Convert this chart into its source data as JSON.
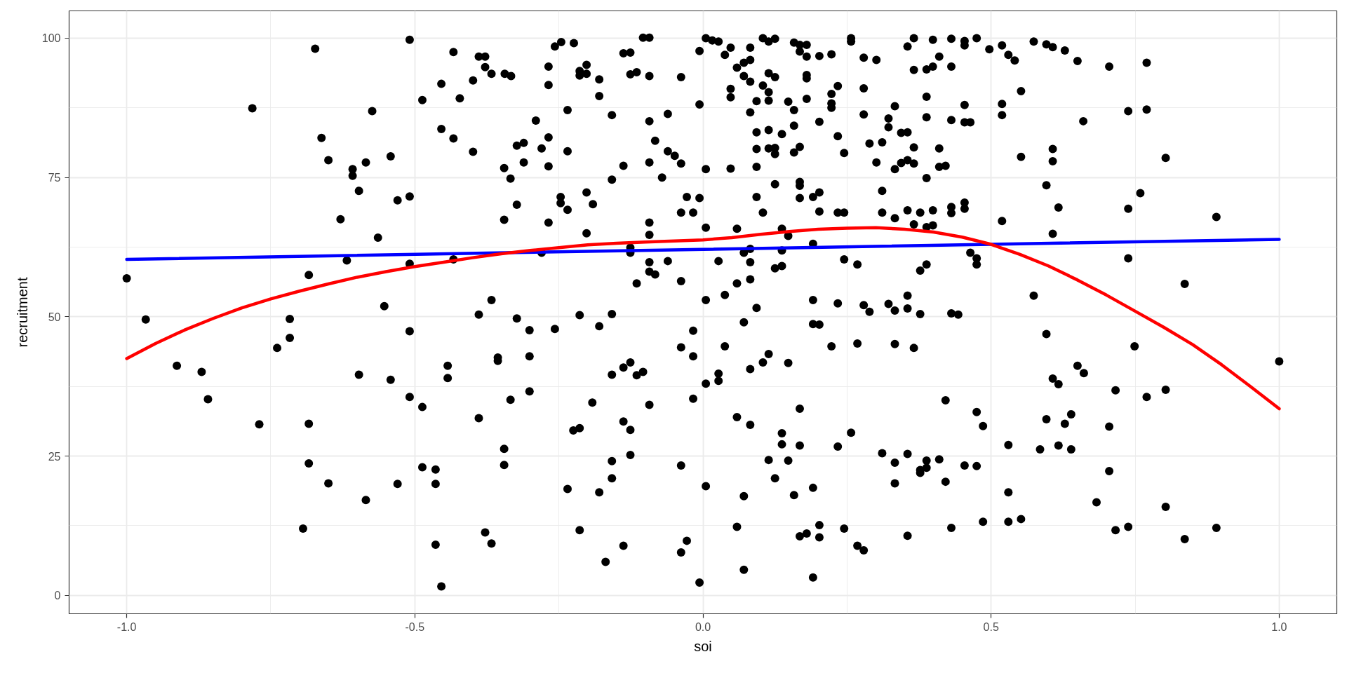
{
  "chart_data": {
    "type": "scatter",
    "xlabel": "soi",
    "ylabel": "recruitment",
    "xlim": [
      -1.1,
      1.1
    ],
    "ylim": [
      -3.3,
      104.9
    ],
    "xticks": [
      {
        "value": -1,
        "label": "-1.0"
      },
      {
        "value": -0.5,
        "label": "-0.5"
      },
      {
        "value": 0,
        "label": "0.0"
      },
      {
        "value": 0.5,
        "label": "0.5"
      },
      {
        "value": 1,
        "label": "1.0"
      }
    ],
    "yticks": [
      0,
      25,
      50,
      75,
      100
    ],
    "grid": true,
    "series": [
      {
        "color": "#000000",
        "marker": "circle",
        "x": [
          -0.782,
          -0.673,
          -0.662,
          -0.65,
          -0.608,
          -0.608,
          -0.585,
          -0.597,
          -0.574,
          -0.542,
          -0.629,
          -0.564,
          -0.53,
          -0.509,
          -0.509,
          -0.487,
          -0.454,
          -0.433,
          -0.454,
          -0.433,
          -0.422,
          -0.399,
          -0.389,
          -0.378,
          -0.378,
          -0.367,
          -0.399,
          -0.618,
          -0.684,
          -0.509,
          -0.433,
          -1.0,
          -0.553,
          -0.389,
          -0.367,
          -0.967,
          -0.913,
          -0.87,
          -0.859,
          -0.77,
          -0.717,
          -0.717,
          -0.739,
          -0.684,
          -0.684,
          -0.65,
          -0.694,
          -0.597,
          -0.542,
          -0.585,
          -0.53,
          -0.509,
          -0.509,
          -0.487,
          -0.487,
          -0.464,
          -0.464,
          -0.464,
          -0.454,
          -0.443,
          -0.443,
          -0.389,
          -0.378,
          -0.367,
          -0.344,
          -0.333,
          -0.268,
          -0.268,
          -0.257,
          -0.246,
          -0.224,
          -0.214,
          -0.214,
          -0.202,
          -0.202,
          -0.18,
          -0.18,
          -0.138,
          -0.126,
          -0.126,
          -0.115,
          -0.104,
          -0.093,
          -0.093,
          -0.038,
          -0.006,
          -0.006,
          0.005,
          0.016,
          0.027,
          0.038,
          0.048,
          0.059,
          0.071,
          0.071,
          0.082,
          0.082,
          0.082,
          0.048,
          0.048,
          0.104,
          0.114,
          0.125,
          0.104,
          0.114,
          0.125,
          0.114,
          0.114,
          0.093,
          0.148,
          0.158,
          0.168,
          0.168,
          0.18,
          0.18,
          0.18,
          0.18,
          0.18,
          0.158,
          0.202,
          0.223,
          0.223,
          0.234,
          0.223,
          0.223,
          0.257,
          0.257,
          0.279,
          0.301,
          0.279,
          0.333,
          0.279,
          0.355,
          0.366,
          0.366,
          -0.29,
          -0.235,
          -0.158,
          -0.093,
          -0.061,
          -0.323,
          -0.311,
          -0.28,
          -0.268,
          -0.235,
          -0.311,
          -0.345,
          -0.268,
          -0.334,
          -0.158,
          -0.138,
          -0.093,
          -0.083,
          -0.061,
          -0.049,
          -0.038,
          -0.071,
          0.005,
          0.048,
          0.082,
          0.093,
          0.114,
          0.137,
          0.158,
          0.093,
          0.114,
          0.125,
          0.125,
          0.158,
          0.168,
          0.093,
          0.202,
          0.234,
          0.245,
          0.289,
          0.311,
          0.301,
          0.322,
          0.322,
          0.344,
          0.355,
          0.366,
          0.333,
          0.344,
          0.355,
          0.366,
          -0.345,
          -0.323,
          -0.247,
          -0.247,
          -0.235,
          -0.202,
          -0.191,
          -0.268,
          -0.202,
          -0.093,
          -0.093,
          -0.028,
          -0.006,
          -0.038,
          -0.017,
          0.005,
          0.059,
          0.093,
          0.104,
          0.125,
          0.168,
          0.168,
          0.168,
          0.191,
          0.202,
          0.202,
          0.234,
          0.245,
          0.311,
          0.311,
          0.333,
          0.355,
          0.366,
          0.137,
          0.148,
          0.191,
          -0.28,
          -0.126,
          -0.126,
          0.071,
          0.082,
          0.137,
          -0.093,
          -0.061,
          0.027,
          0.082,
          0.245,
          0.268,
          0.125,
          0.137,
          -0.093,
          -0.083,
          -0.115,
          -0.038,
          0.059,
          0.082,
          0.038,
          0.005,
          0.093,
          0.191,
          0.234,
          0.279,
          0.289,
          0.322,
          0.333,
          0.355,
          0.355,
          -0.323,
          -0.214,
          -0.158,
          -0.301,
          -0.257,
          -0.18,
          -0.356,
          -0.356,
          -0.301,
          -0.301,
          -0.334,
          -0.345,
          -0.345,
          -0.192,
          -0.225,
          -0.214,
          -0.235,
          -0.214,
          -0.18,
          -0.169,
          -0.158,
          -0.138,
          -0.126,
          -0.115,
          -0.104,
          -0.093,
          -0.138,
          -0.126,
          -0.126,
          -0.158,
          -0.158,
          -0.138,
          -0.038,
          -0.017,
          -0.017,
          -0.017,
          0.005,
          0.027,
          0.027,
          0.038,
          0.071,
          -0.038,
          0.005,
          -0.028,
          -0.038,
          -0.006,
          0.059,
          0.082,
          0.082,
          0.104,
          0.114,
          0.148,
          0.191,
          0.202,
          0.223,
          0.268,
          0.333,
          0.366,
          0.168,
          0.137,
          0.137,
          0.168,
          0.114,
          0.148,
          0.125,
          0.071,
          0.158,
          0.191,
          0.234,
          0.257,
          0.059,
          0.071,
          0.168,
          0.18,
          0.202,
          0.202,
          0.245,
          0.268,
          0.279,
          0.191,
          0.311,
          0.333,
          0.355,
          0.333,
          0.355,
          0.399,
          0.431,
          0.454,
          0.454,
          0.475,
          0.497,
          0.519,
          0.53,
          0.541,
          0.574,
          0.596,
          0.607,
          0.628,
          0.65,
          0.705,
          0.77,
          0.41,
          0.399,
          0.388,
          0.431,
          0.552,
          0.388,
          0.454,
          0.519,
          0.519,
          0.388,
          0.431,
          0.454,
          0.464,
          0.66,
          0.738,
          0.77,
          0.41,
          0.41,
          0.421,
          0.388,
          0.552,
          0.607,
          0.607,
          0.803,
          0.596,
          0.759,
          0.377,
          0.399,
          0.431,
          0.431,
          0.454,
          0.454,
          0.388,
          0.399,
          0.519,
          0.617,
          0.738,
          0.891,
          0.607,
          0.464,
          0.475,
          0.475,
          0.388,
          0.377,
          0.738,
          0.836,
          0.574,
          0.377,
          0.431,
          0.443,
          0.596,
          0.749,
          1.0,
          0.65,
          0.661,
          0.607,
          0.617,
          0.716,
          0.77,
          0.803,
          0.421,
          0.475,
          0.486,
          0.596,
          0.628,
          0.639,
          0.705,
          0.53,
          0.585,
          0.617,
          0.639,
          0.377,
          0.377,
          0.388,
          0.388,
          0.41,
          0.421,
          0.454,
          0.475,
          0.705,
          0.53,
          0.683,
          0.803,
          0.431,
          0.486,
          0.53,
          0.552,
          0.716,
          0.738,
          0.836,
          0.891
        ],
        "values": [
          87.4,
          98.1,
          82.1,
          78.1,
          76.5,
          75.3,
          77.7,
          72.6,
          86.9,
          78.8,
          67.5,
          64.2,
          70.9,
          71.6,
          99.7,
          88.9,
          91.8,
          97.5,
          83.7,
          82.0,
          89.2,
          92.4,
          96.7,
          96.7,
          94.8,
          93.6,
          79.6,
          60.1,
          57.5,
          59.5,
          60.3,
          56.9,
          51.9,
          50.4,
          53.0,
          49.5,
          41.2,
          40.1,
          35.2,
          30.7,
          49.6,
          46.2,
          44.4,
          30.8,
          23.7,
          20.1,
          12.0,
          39.6,
          38.7,
          17.1,
          20.0,
          47.4,
          35.6,
          33.8,
          23.0,
          22.6,
          20.0,
          9.1,
          1.6,
          41.2,
          39.0,
          31.8,
          11.3,
          9.3,
          93.6,
          93.2,
          94.9,
          91.6,
          98.5,
          99.3,
          99.1,
          94.1,
          93.3,
          95.2,
          93.6,
          92.6,
          89.6,
          97.3,
          97.4,
          93.5,
          93.9,
          100.1,
          100.1,
          93.2,
          93.0,
          97.7,
          88.1,
          100.0,
          99.6,
          99.4,
          97.0,
          98.3,
          94.7,
          95.6,
          93.2,
          98.3,
          96.1,
          92.2,
          90.9,
          89.4,
          100.0,
          99.4,
          99.9,
          91.5,
          93.7,
          93.0,
          90.3,
          88.8,
          88.7,
          88.6,
          99.2,
          98.8,
          97.6,
          98.8,
          96.7,
          93.4,
          92.8,
          89.1,
          87.1,
          96.8,
          97.1,
          90.0,
          91.4,
          88.3,
          87.5,
          100.0,
          99.4,
          96.5,
          96.1,
          91.0,
          87.8,
          86.3,
          98.5,
          100.0,
          94.3,
          85.2,
          87.1,
          86.2,
          85.1,
          86.4,
          80.7,
          81.2,
          80.2,
          82.2,
          79.7,
          77.7,
          76.7,
          77.0,
          74.8,
          74.6,
          77.1,
          77.7,
          81.6,
          79.7,
          78.9,
          77.5,
          75.0,
          76.5,
          76.6,
          86.7,
          83.1,
          83.5,
          82.8,
          84.3,
          80.1,
          80.2,
          80.3,
          79.2,
          79.5,
          80.5,
          76.9,
          85.0,
          82.4,
          79.4,
          81.1,
          81.3,
          77.7,
          85.6,
          84.0,
          83.0,
          83.1,
          80.4,
          76.5,
          77.6,
          78.1,
          77.5,
          67.4,
          70.1,
          71.5,
          70.4,
          69.2,
          72.3,
          70.2,
          66.9,
          65.0,
          66.9,
          64.7,
          71.5,
          71.3,
          68.7,
          68.7,
          66.0,
          65.8,
          71.5,
          68.7,
          73.8,
          74.2,
          73.5,
          71.3,
          71.5,
          72.3,
          68.9,
          68.7,
          68.7,
          72.6,
          68.7,
          67.7,
          69.1,
          66.6,
          65.8,
          64.5,
          63.1,
          61.5,
          62.4,
          61.5,
          61.5,
          62.2,
          61.9,
          59.8,
          60.0,
          60.0,
          59.8,
          60.3,
          59.4,
          58.7,
          59.1,
          58.1,
          57.6,
          56.0,
          56.4,
          56.0,
          56.7,
          53.9,
          53.0,
          51.6,
          53.0,
          52.4,
          52.1,
          50.9,
          52.3,
          51.1,
          53.8,
          51.5,
          49.7,
          50.3,
          50.5,
          47.6,
          47.8,
          48.3,
          42.7,
          42.1,
          42.9,
          36.6,
          35.1,
          26.3,
          23.4,
          34.6,
          29.6,
          30.0,
          19.1,
          11.7,
          18.5,
          6.0,
          39.6,
          40.9,
          41.8,
          39.5,
          40.1,
          34.2,
          31.2,
          29.7,
          25.2,
          24.1,
          21.0,
          8.9,
          44.5,
          47.5,
          42.9,
          35.3,
          38.0,
          39.8,
          38.5,
          44.7,
          49.0,
          23.3,
          19.6,
          9.8,
          7.7,
          2.3,
          32.0,
          30.6,
          40.6,
          41.8,
          43.3,
          41.7,
          48.7,
          48.6,
          44.7,
          45.2,
          45.1,
          44.4,
          33.5,
          29.1,
          27.1,
          26.9,
          24.3,
          24.2,
          21.0,
          17.8,
          18.0,
          19.3,
          26.7,
          29.2,
          12.3,
          4.6,
          10.6,
          11.1,
          12.6,
          10.4,
          12.0,
          8.9,
          8.1,
          3.2,
          25.5,
          23.8,
          25.4,
          20.1,
          10.7,
          99.7,
          99.9,
          99.5,
          98.7,
          100.0,
          98.0,
          98.7,
          97.0,
          96.0,
          99.4,
          98.9,
          98.4,
          97.8,
          95.9,
          94.9,
          95.6,
          96.7,
          94.9,
          94.4,
          94.9,
          90.5,
          89.5,
          88.0,
          88.2,
          86.2,
          85.8,
          85.3,
          84.9,
          84.9,
          85.1,
          86.9,
          87.2,
          80.2,
          76.9,
          77.1,
          74.9,
          78.7,
          80.1,
          77.9,
          78.5,
          73.6,
          72.2,
          68.7,
          69.1,
          69.7,
          68.6,
          70.5,
          69.4,
          66.1,
          66.4,
          67.2,
          69.6,
          69.4,
          67.9,
          64.9,
          61.5,
          60.5,
          59.4,
          59.4,
          58.3,
          60.5,
          55.9,
          53.8,
          50.5,
          50.6,
          50.4,
          46.9,
          44.7,
          42.0,
          41.2,
          39.9,
          38.9,
          37.9,
          36.8,
          35.6,
          36.9,
          35.0,
          32.9,
          30.4,
          31.6,
          30.8,
          32.5,
          30.3,
          27.0,
          26.2,
          26.9,
          26.2,
          22.5,
          22.0,
          24.2,
          22.9,
          24.4,
          20.4,
          23.3,
          23.2,
          22.3,
          18.5,
          16.7,
          15.9,
          12.1,
          13.2,
          13.2,
          13.7,
          11.7,
          12.3,
          10.1,
          12.1
        ]
      },
      {
        "type": "line",
        "color": "#0000ff",
        "marker": "none",
        "x": [
          -1,
          1
        ],
        "values": [
          60.3,
          63.9
        ]
      },
      {
        "type": "line",
        "color": "#ff0000",
        "marker": "none",
        "x": [
          -1,
          -0.95,
          -0.9,
          -0.85,
          -0.8,
          -0.75,
          -0.7,
          -0.65,
          -0.6,
          -0.55,
          -0.5,
          -0.45,
          -0.4,
          -0.35,
          -0.3,
          -0.25,
          -0.2,
          -0.15,
          -0.1,
          -0.05,
          0,
          0.05,
          0.1,
          0.15,
          0.2,
          0.25,
          0.3,
          0.35,
          0.4,
          0.45,
          0.5,
          0.55,
          0.6,
          0.65,
          0.7,
          0.75,
          0.8,
          0.85,
          0.9,
          0.95,
          1
        ],
        "values": [
          42.5,
          45.2,
          47.6,
          49.7,
          51.6,
          53.2,
          54.6,
          55.9,
          57.1,
          58.1,
          59.0,
          59.8,
          60.6,
          61.3,
          61.9,
          62.4,
          62.9,
          63.2,
          63.4,
          63.6,
          63.8,
          64.2,
          64.8,
          65.3,
          65.7,
          65.9,
          66.0,
          65.7,
          65.2,
          64.3,
          63.0,
          61.2,
          59.1,
          56.6,
          53.9,
          51.0,
          48.1,
          45.0,
          41.4,
          37.5,
          33.5
        ]
      }
    ]
  }
}
